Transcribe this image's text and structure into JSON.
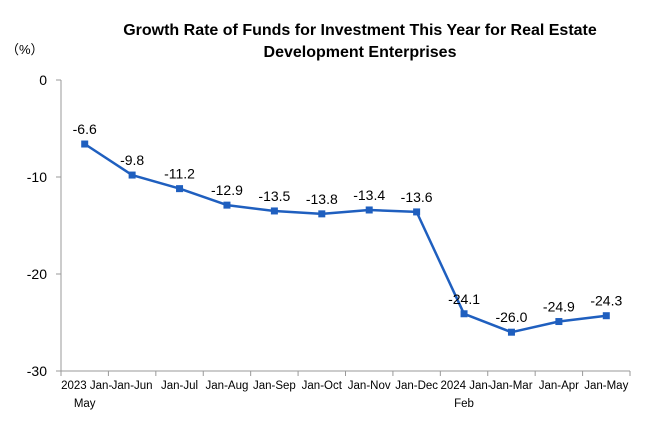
{
  "chart_data": {
    "type": "line",
    "title_lines": [
      "Growth Rate of Funds for Investment This Year for Real Estate",
      "Development Enterprises"
    ],
    "y_unit": "（%）",
    "categories": [
      [
        "2023 Jan-",
        "May"
      ],
      [
        "Jan-Jun"
      ],
      [
        "Jan-Jul"
      ],
      [
        "Jan-Aug"
      ],
      [
        "Jan-Sep"
      ],
      [
        "Jan-Oct"
      ],
      [
        "Jan-Nov"
      ],
      [
        "Jan-Dec"
      ],
      [
        "2024 Jan-",
        "Feb"
      ],
      [
        "Jan-Mar"
      ],
      [
        "Jan-Apr"
      ],
      [
        "Jan-May"
      ]
    ],
    "values": [
      -6.6,
      -9.8,
      -11.2,
      -12.9,
      -13.5,
      -13.8,
      -13.4,
      -13.6,
      -24.1,
      -26.0,
      -24.9,
      -24.3
    ],
    "value_labels": [
      "-6.6",
      "-9.8",
      "-11.2",
      "-12.9",
      "-13.5",
      "-13.8",
      "-13.4",
      "-13.6",
      "-24.1",
      "-26.0",
      "-24.9",
      "-24.3"
    ],
    "ylim": [
      -30,
      0
    ],
    "yticks": [
      0,
      -10,
      -20,
      -30
    ],
    "ytick_labels": [
      "0",
      "-10",
      "-20",
      "-30"
    ],
    "grid": false,
    "legend": "none",
    "line_color": "#1f5fbf",
    "axis_color": "#999999"
  }
}
